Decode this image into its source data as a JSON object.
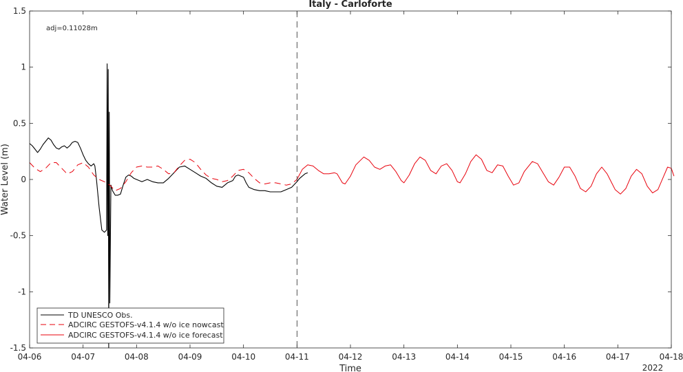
{
  "chart_data": {
    "type": "line",
    "title": "Italy - Carloforte",
    "xlabel": "Time",
    "ylabel": "Water Level (m)",
    "x_ticks": [
      "04-06",
      "04-07",
      "04-08",
      "04-09",
      "04-10",
      "04-11",
      "04-12",
      "04-13",
      "04-14",
      "04-15",
      "04-16",
      "04-17",
      "04-18"
    ],
    "x_secondary_label": "2022",
    "xlim_days": [
      0,
      12
    ],
    "ylim": [
      -1.5,
      1.5
    ],
    "y_ticks": [
      -1.5,
      -1,
      -0.5,
      0,
      0.5,
      1,
      1.5
    ],
    "y_tick_labels": [
      "-1.5",
      "-1",
      "-0.5",
      "0",
      "0.5",
      "1",
      "1.5"
    ],
    "grid": false,
    "legend_position": "bottom-left",
    "annotation": "adj=0.11028m",
    "forecast_start": "04-11",
    "series": [
      {
        "name": "TD UNESCO Obs.",
        "style": "solid",
        "color": "#000000",
        "points": [
          [
            0.0,
            0.32
          ],
          [
            0.05,
            0.3
          ],
          [
            0.1,
            0.27
          ],
          [
            0.15,
            0.24
          ],
          [
            0.2,
            0.27
          ],
          [
            0.25,
            0.31
          ],
          [
            0.3,
            0.34
          ],
          [
            0.35,
            0.37
          ],
          [
            0.4,
            0.35
          ],
          [
            0.45,
            0.31
          ],
          [
            0.5,
            0.28
          ],
          [
            0.55,
            0.27
          ],
          [
            0.6,
            0.29
          ],
          [
            0.65,
            0.3
          ],
          [
            0.7,
            0.28
          ],
          [
            0.75,
            0.3
          ],
          [
            0.8,
            0.33
          ],
          [
            0.85,
            0.34
          ],
          [
            0.9,
            0.33
          ],
          [
            0.95,
            0.28
          ],
          [
            1.0,
            0.22
          ],
          [
            1.05,
            0.17
          ],
          [
            1.1,
            0.14
          ],
          [
            1.15,
            0.12
          ],
          [
            1.2,
            0.14
          ],
          [
            1.22,
            0.12
          ],
          [
            1.25,
            0.0
          ],
          [
            1.3,
            -0.25
          ],
          [
            1.35,
            -0.45
          ],
          [
            1.4,
            -0.47
          ],
          [
            1.44,
            -0.45
          ],
          [
            1.45,
            1.03
          ],
          [
            1.46,
            -0.5
          ],
          [
            1.47,
            0.98
          ],
          [
            1.48,
            -1.5
          ],
          [
            1.49,
            0.6
          ],
          [
            1.5,
            -1.1
          ],
          [
            1.52,
            -0.05
          ],
          [
            1.55,
            -0.1
          ],
          [
            1.6,
            -0.14
          ],
          [
            1.65,
            -0.14
          ],
          [
            1.7,
            -0.13
          ],
          [
            1.75,
            -0.05
          ],
          [
            1.8,
            0.02
          ],
          [
            1.85,
            0.04
          ],
          [
            1.9,
            0.03
          ],
          [
            1.95,
            0.01
          ],
          [
            2.0,
            0.0
          ],
          [
            2.1,
            -0.02
          ],
          [
            2.2,
            0.0
          ],
          [
            2.3,
            -0.02
          ],
          [
            2.4,
            -0.03
          ],
          [
            2.5,
            -0.03
          ],
          [
            2.6,
            0.01
          ],
          [
            2.7,
            0.06
          ],
          [
            2.8,
            0.11
          ],
          [
            2.9,
            0.12
          ],
          [
            3.0,
            0.09
          ],
          [
            3.1,
            0.06
          ],
          [
            3.2,
            0.03
          ],
          [
            3.3,
            0.01
          ],
          [
            3.4,
            -0.03
          ],
          [
            3.5,
            -0.06
          ],
          [
            3.6,
            -0.07
          ],
          [
            3.65,
            -0.05
          ],
          [
            3.7,
            -0.03
          ],
          [
            3.8,
            -0.01
          ],
          [
            3.85,
            0.03
          ],
          [
            3.9,
            0.04
          ],
          [
            4.0,
            0.02
          ],
          [
            4.05,
            -0.03
          ],
          [
            4.1,
            -0.07
          ],
          [
            4.2,
            -0.09
          ],
          [
            4.3,
            -0.1
          ],
          [
            4.4,
            -0.1
          ],
          [
            4.5,
            -0.11
          ],
          [
            4.6,
            -0.11
          ],
          [
            4.7,
            -0.11
          ],
          [
            4.8,
            -0.09
          ],
          [
            4.9,
            -0.07
          ],
          [
            5.0,
            -0.02
          ],
          [
            5.05,
            0.01
          ],
          [
            5.1,
            0.03
          ],
          [
            5.15,
            0.05
          ],
          [
            5.2,
            0.06
          ]
        ]
      },
      {
        "name": "ADCIRC GESTOFS-v4.1.4 w/o ice nowcast",
        "style": "dashed",
        "color": "#e8000b",
        "points": [
          [
            0.0,
            0.15
          ],
          [
            0.1,
            0.1
          ],
          [
            0.2,
            0.07
          ],
          [
            0.3,
            0.1
          ],
          [
            0.4,
            0.15
          ],
          [
            0.5,
            0.15
          ],
          [
            0.6,
            0.1
          ],
          [
            0.7,
            0.05
          ],
          [
            0.8,
            0.07
          ],
          [
            0.9,
            0.13
          ],
          [
            1.0,
            0.15
          ],
          [
            1.1,
            0.11
          ],
          [
            1.2,
            0.04
          ],
          [
            1.3,
            0.0
          ],
          [
            1.4,
            -0.02
          ],
          [
            1.5,
            -0.05
          ],
          [
            1.6,
            -0.1
          ],
          [
            1.7,
            -0.08
          ],
          [
            1.8,
            -0.02
          ],
          [
            1.9,
            0.06
          ],
          [
            2.0,
            0.11
          ],
          [
            2.1,
            0.12
          ],
          [
            2.2,
            0.11
          ],
          [
            2.3,
            0.11
          ],
          [
            2.4,
            0.12
          ],
          [
            2.5,
            0.09
          ],
          [
            2.6,
            0.05
          ],
          [
            2.7,
            0.06
          ],
          [
            2.8,
            0.12
          ],
          [
            2.9,
            0.17
          ],
          [
            3.0,
            0.18
          ],
          [
            3.1,
            0.15
          ],
          [
            3.2,
            0.09
          ],
          [
            3.3,
            0.04
          ],
          [
            3.4,
            0.01
          ],
          [
            3.5,
            0.0
          ],
          [
            3.6,
            -0.02
          ],
          [
            3.7,
            -0.01
          ],
          [
            3.8,
            0.03
          ],
          [
            3.9,
            0.08
          ],
          [
            4.0,
            0.09
          ],
          [
            4.1,
            0.06
          ],
          [
            4.2,
            0.01
          ],
          [
            4.3,
            -0.03
          ],
          [
            4.4,
            -0.04
          ],
          [
            4.5,
            -0.03
          ],
          [
            4.6,
            -0.03
          ],
          [
            4.7,
            -0.04
          ],
          [
            4.8,
            -0.05
          ],
          [
            4.9,
            -0.04
          ],
          [
            5.0,
            0.0
          ]
        ]
      },
      {
        "name": "ADCIRC GESTOFS-v4.1.4 w/o ice forecast",
        "style": "solid",
        "color": "#e8000b",
        "points": [
          [
            5.0,
            0.0
          ],
          [
            5.1,
            0.09
          ],
          [
            5.2,
            0.13
          ],
          [
            5.3,
            0.12
          ],
          [
            5.4,
            0.08
          ],
          [
            5.5,
            0.05
          ],
          [
            5.6,
            0.05
          ],
          [
            5.7,
            0.06
          ],
          [
            5.75,
            0.05
          ],
          [
            5.85,
            -0.03
          ],
          [
            5.9,
            -0.04
          ],
          [
            6.0,
            0.03
          ],
          [
            6.1,
            0.13
          ],
          [
            6.25,
            0.2
          ],
          [
            6.35,
            0.17
          ],
          [
            6.45,
            0.11
          ],
          [
            6.55,
            0.09
          ],
          [
            6.65,
            0.12
          ],
          [
            6.75,
            0.13
          ],
          [
            6.85,
            0.07
          ],
          [
            6.95,
            -0.01
          ],
          [
            7.0,
            -0.03
          ],
          [
            7.1,
            0.04
          ],
          [
            7.2,
            0.14
          ],
          [
            7.3,
            0.2
          ],
          [
            7.4,
            0.17
          ],
          [
            7.5,
            0.08
          ],
          [
            7.6,
            0.05
          ],
          [
            7.7,
            0.12
          ],
          [
            7.8,
            0.14
          ],
          [
            7.9,
            0.08
          ],
          [
            8.0,
            -0.02
          ],
          [
            8.05,
            -0.03
          ],
          [
            8.15,
            0.05
          ],
          [
            8.25,
            0.16
          ],
          [
            8.35,
            0.22
          ],
          [
            8.45,
            0.18
          ],
          [
            8.55,
            0.08
          ],
          [
            8.65,
            0.06
          ],
          [
            8.75,
            0.13
          ],
          [
            8.85,
            0.12
          ],
          [
            8.95,
            0.03
          ],
          [
            9.05,
            -0.05
          ],
          [
            9.15,
            -0.03
          ],
          [
            9.25,
            0.07
          ],
          [
            9.4,
            0.16
          ],
          [
            9.5,
            0.14
          ],
          [
            9.6,
            0.06
          ],
          [
            9.7,
            -0.02
          ],
          [
            9.8,
            -0.05
          ],
          [
            9.9,
            0.02
          ],
          [
            10.0,
            0.11
          ],
          [
            10.1,
            0.11
          ],
          [
            10.2,
            0.03
          ],
          [
            10.3,
            -0.08
          ],
          [
            10.4,
            -0.11
          ],
          [
            10.5,
            -0.06
          ],
          [
            10.6,
            0.05
          ],
          [
            10.7,
            0.11
          ],
          [
            10.8,
            0.05
          ],
          [
            10.95,
            -0.09
          ],
          [
            11.05,
            -0.13
          ],
          [
            11.15,
            -0.08
          ],
          [
            11.25,
            0.03
          ],
          [
            11.35,
            0.09
          ],
          [
            11.45,
            0.05
          ],
          [
            11.55,
            -0.06
          ],
          [
            11.65,
            -0.12
          ],
          [
            11.75,
            -0.09
          ],
          [
            11.85,
            0.02
          ],
          [
            11.93,
            0.11
          ],
          [
            12.0,
            0.1
          ],
          [
            12.05,
            0.03
          ]
        ]
      }
    ]
  }
}
